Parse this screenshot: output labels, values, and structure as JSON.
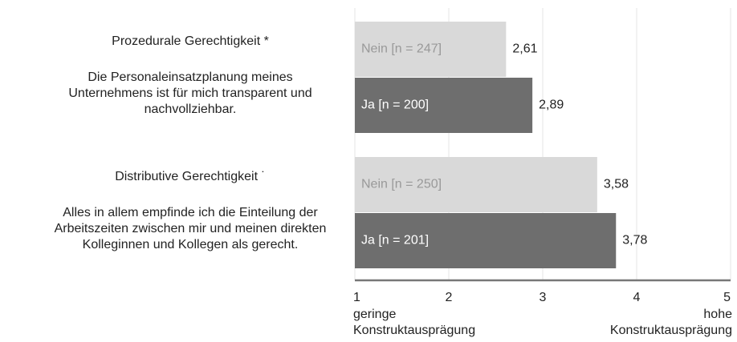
{
  "chart_data": {
    "type": "bar",
    "orientation": "horizontal",
    "categories": [
      "Prozedurale Gerechtigkeit *",
      "Distributive Gerechtigkeit ˙"
    ],
    "descriptions": [
      [
        "Die Personaleinsatzplanung meines",
        "Unternehmens ist für mich transparent und",
        "nachvollziehbar."
      ],
      [
        "Alles in allem empfinde ich die Einteilung der",
        "Arbeitszeiten zwischen mir und meinen direkten",
        "Kolleginnen und Kollegen als gerecht."
      ]
    ],
    "series": [
      {
        "color": "#d9d9d9",
        "label_color": "#999999",
        "labels": [
          "Nein [n = 247]",
          "Nein [n = 250]"
        ],
        "values": [
          2.61,
          3.58
        ],
        "value_labels": [
          "2,61",
          "3,58"
        ]
      },
      {
        "color": "#6e6e6e",
        "label_color": "#ffffff",
        "labels": [
          "Ja [n = 200]",
          "Ja [n = 201]"
        ],
        "values": [
          2.89,
          3.78
        ],
        "value_labels": [
          "2,89",
          "3,78"
        ]
      }
    ],
    "xlim": [
      1,
      5
    ],
    "xticks": [
      1,
      2,
      3,
      4,
      5
    ],
    "xlabel_low": [
      "geringe",
      "Konstruktausprägung"
    ],
    "xlabel_high": [
      "hohe",
      "Konstruktausprägung"
    ],
    "grid": true
  }
}
